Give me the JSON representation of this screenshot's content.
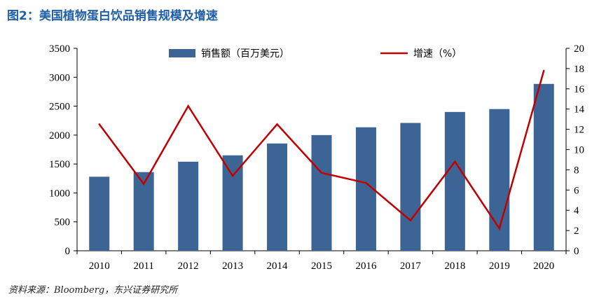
{
  "title": "图2：美国植物蛋白饮品销售规模及增速",
  "source": "资料来源：Bloomberg，东兴证券研究所",
  "chart_data": {
    "type": "bar",
    "categories": [
      "2010",
      "2011",
      "2012",
      "2013",
      "2014",
      "2015",
      "2016",
      "2017",
      "2018",
      "2019",
      "2020"
    ],
    "series": [
      {
        "name": "销售额（百万美元）",
        "type": "bar",
        "axis": "left",
        "color": "#3c6595",
        "values": [
          1280,
          1360,
          1540,
          1650,
          1855,
          2000,
          2135,
          2210,
          2400,
          2450,
          2885
        ]
      },
      {
        "name": "增速（%）",
        "type": "line",
        "axis": "right",
        "color": "#c00000",
        "values": [
          12.5,
          6.6,
          14.3,
          7.4,
          12.5,
          7.7,
          6.7,
          3.0,
          8.8,
          2.2,
          17.8
        ]
      }
    ],
    "ylim_left": [
      0,
      3500
    ],
    "yticks_left": [
      "0",
      "500",
      "1000",
      "1500",
      "2000",
      "2500",
      "3000",
      "3500"
    ],
    "ylim_right": [
      0,
      20
    ],
    "yticks_right": [
      "0",
      "2",
      "4",
      "6",
      "8",
      "10",
      "12",
      "14",
      "16",
      "18",
      "20"
    ],
    "grid": false,
    "legend": "top"
  }
}
